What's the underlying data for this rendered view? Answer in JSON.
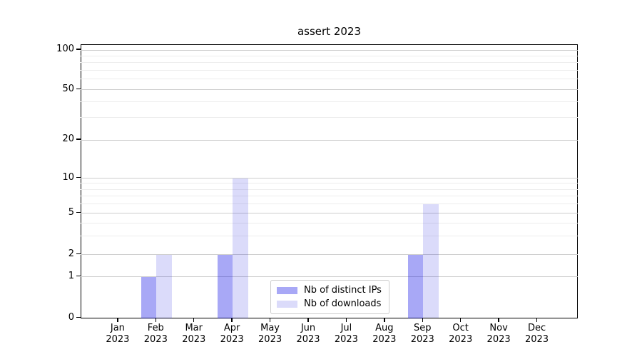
{
  "chart_data": {
    "type": "bar",
    "title": "assert 2023",
    "categories": [
      "Jan",
      "Feb",
      "Mar",
      "Apr",
      "May",
      "Jun",
      "Jul",
      "Aug",
      "Sep",
      "Oct",
      "Nov",
      "Dec"
    ],
    "x_tick_year": "2023",
    "series": [
      {
        "name": "Nb of distinct IPs",
        "color": "rgba(0,0,230,0.34)",
        "values": [
          0,
          1,
          0,
          2,
          0,
          0,
          0,
          0,
          2,
          0,
          0,
          0
        ]
      },
      {
        "name": "Nb of downloads",
        "color": "rgba(0,0,220,0.14)",
        "values": [
          0,
          2,
          0,
          10,
          0,
          0,
          0,
          0,
          6,
          0,
          0,
          0
        ]
      }
    ],
    "y_axis": {
      "ticks": [
        0,
        1,
        2,
        5,
        10,
        20,
        50,
        100
      ],
      "minor_ticks": [
        3,
        4,
        6,
        7,
        8,
        9,
        30,
        40,
        60,
        70,
        80,
        90
      ],
      "scale": "quasi-log",
      "range": [
        0,
        100
      ]
    },
    "grid": true,
    "legend_position": "lower center",
    "colors": {
      "bar_distinct_ips": "#a9a9f6",
      "bar_downloads": "#dbdbfa",
      "grid_major": "#cdcdcd",
      "grid_minor": "#ededed",
      "axis": "#000000"
    }
  }
}
